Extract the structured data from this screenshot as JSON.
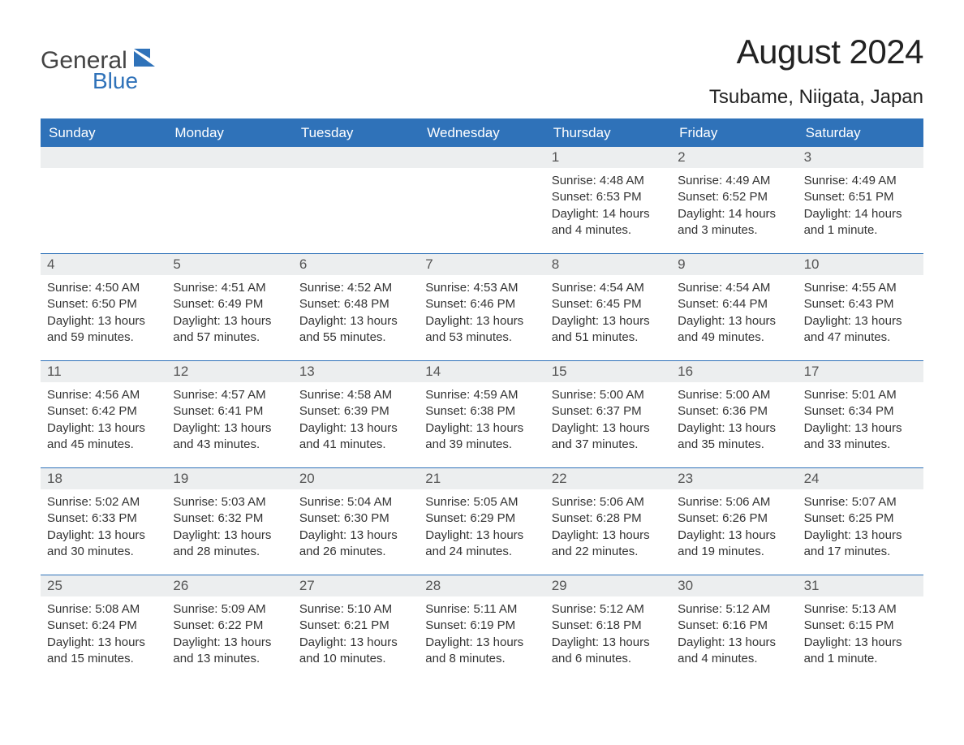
{
  "brand": {
    "text1": "General",
    "text2": "Blue",
    "accent_color": "#2f72b9",
    "text1_color": "#444444"
  },
  "header": {
    "title": "August 2024",
    "location": "Tsubame, Niigata, Japan",
    "title_fontsize": 42,
    "location_fontsize": 24
  },
  "calendar": {
    "type": "table",
    "header_bg": "#2f72b9",
    "header_text_color": "#ffffff",
    "daynum_bg": "#eceeef",
    "row_border_color": "#2f72b9",
    "body_text_color": "#333333",
    "days_of_week": [
      "Sunday",
      "Monday",
      "Tuesday",
      "Wednesday",
      "Thursday",
      "Friday",
      "Saturday"
    ],
    "leading_blanks": 4,
    "days": [
      {
        "n": "1",
        "sunrise": "Sunrise: 4:48 AM",
        "sunset": "Sunset: 6:53 PM",
        "day1": "Daylight: 14 hours",
        "day2": "and 4 minutes."
      },
      {
        "n": "2",
        "sunrise": "Sunrise: 4:49 AM",
        "sunset": "Sunset: 6:52 PM",
        "day1": "Daylight: 14 hours",
        "day2": "and 3 minutes."
      },
      {
        "n": "3",
        "sunrise": "Sunrise: 4:49 AM",
        "sunset": "Sunset: 6:51 PM",
        "day1": "Daylight: 14 hours",
        "day2": "and 1 minute."
      },
      {
        "n": "4",
        "sunrise": "Sunrise: 4:50 AM",
        "sunset": "Sunset: 6:50 PM",
        "day1": "Daylight: 13 hours",
        "day2": "and 59 minutes."
      },
      {
        "n": "5",
        "sunrise": "Sunrise: 4:51 AM",
        "sunset": "Sunset: 6:49 PM",
        "day1": "Daylight: 13 hours",
        "day2": "and 57 minutes."
      },
      {
        "n": "6",
        "sunrise": "Sunrise: 4:52 AM",
        "sunset": "Sunset: 6:48 PM",
        "day1": "Daylight: 13 hours",
        "day2": "and 55 minutes."
      },
      {
        "n": "7",
        "sunrise": "Sunrise: 4:53 AM",
        "sunset": "Sunset: 6:46 PM",
        "day1": "Daylight: 13 hours",
        "day2": "and 53 minutes."
      },
      {
        "n": "8",
        "sunrise": "Sunrise: 4:54 AM",
        "sunset": "Sunset: 6:45 PM",
        "day1": "Daylight: 13 hours",
        "day2": "and 51 minutes."
      },
      {
        "n": "9",
        "sunrise": "Sunrise: 4:54 AM",
        "sunset": "Sunset: 6:44 PM",
        "day1": "Daylight: 13 hours",
        "day2": "and 49 minutes."
      },
      {
        "n": "10",
        "sunrise": "Sunrise: 4:55 AM",
        "sunset": "Sunset: 6:43 PM",
        "day1": "Daylight: 13 hours",
        "day2": "and 47 minutes."
      },
      {
        "n": "11",
        "sunrise": "Sunrise: 4:56 AM",
        "sunset": "Sunset: 6:42 PM",
        "day1": "Daylight: 13 hours",
        "day2": "and 45 minutes."
      },
      {
        "n": "12",
        "sunrise": "Sunrise: 4:57 AM",
        "sunset": "Sunset: 6:41 PM",
        "day1": "Daylight: 13 hours",
        "day2": "and 43 minutes."
      },
      {
        "n": "13",
        "sunrise": "Sunrise: 4:58 AM",
        "sunset": "Sunset: 6:39 PM",
        "day1": "Daylight: 13 hours",
        "day2": "and 41 minutes."
      },
      {
        "n": "14",
        "sunrise": "Sunrise: 4:59 AM",
        "sunset": "Sunset: 6:38 PM",
        "day1": "Daylight: 13 hours",
        "day2": "and 39 minutes."
      },
      {
        "n": "15",
        "sunrise": "Sunrise: 5:00 AM",
        "sunset": "Sunset: 6:37 PM",
        "day1": "Daylight: 13 hours",
        "day2": "and 37 minutes."
      },
      {
        "n": "16",
        "sunrise": "Sunrise: 5:00 AM",
        "sunset": "Sunset: 6:36 PM",
        "day1": "Daylight: 13 hours",
        "day2": "and 35 minutes."
      },
      {
        "n": "17",
        "sunrise": "Sunrise: 5:01 AM",
        "sunset": "Sunset: 6:34 PM",
        "day1": "Daylight: 13 hours",
        "day2": "and 33 minutes."
      },
      {
        "n": "18",
        "sunrise": "Sunrise: 5:02 AM",
        "sunset": "Sunset: 6:33 PM",
        "day1": "Daylight: 13 hours",
        "day2": "and 30 minutes."
      },
      {
        "n": "19",
        "sunrise": "Sunrise: 5:03 AM",
        "sunset": "Sunset: 6:32 PM",
        "day1": "Daylight: 13 hours",
        "day2": "and 28 minutes."
      },
      {
        "n": "20",
        "sunrise": "Sunrise: 5:04 AM",
        "sunset": "Sunset: 6:30 PM",
        "day1": "Daylight: 13 hours",
        "day2": "and 26 minutes."
      },
      {
        "n": "21",
        "sunrise": "Sunrise: 5:05 AM",
        "sunset": "Sunset: 6:29 PM",
        "day1": "Daylight: 13 hours",
        "day2": "and 24 minutes."
      },
      {
        "n": "22",
        "sunrise": "Sunrise: 5:06 AM",
        "sunset": "Sunset: 6:28 PM",
        "day1": "Daylight: 13 hours",
        "day2": "and 22 minutes."
      },
      {
        "n": "23",
        "sunrise": "Sunrise: 5:06 AM",
        "sunset": "Sunset: 6:26 PM",
        "day1": "Daylight: 13 hours",
        "day2": "and 19 minutes."
      },
      {
        "n": "24",
        "sunrise": "Sunrise: 5:07 AM",
        "sunset": "Sunset: 6:25 PM",
        "day1": "Daylight: 13 hours",
        "day2": "and 17 minutes."
      },
      {
        "n": "25",
        "sunrise": "Sunrise: 5:08 AM",
        "sunset": "Sunset: 6:24 PM",
        "day1": "Daylight: 13 hours",
        "day2": "and 15 minutes."
      },
      {
        "n": "26",
        "sunrise": "Sunrise: 5:09 AM",
        "sunset": "Sunset: 6:22 PM",
        "day1": "Daylight: 13 hours",
        "day2": "and 13 minutes."
      },
      {
        "n": "27",
        "sunrise": "Sunrise: 5:10 AM",
        "sunset": "Sunset: 6:21 PM",
        "day1": "Daylight: 13 hours",
        "day2": "and 10 minutes."
      },
      {
        "n": "28",
        "sunrise": "Sunrise: 5:11 AM",
        "sunset": "Sunset: 6:19 PM",
        "day1": "Daylight: 13 hours",
        "day2": "and 8 minutes."
      },
      {
        "n": "29",
        "sunrise": "Sunrise: 5:12 AM",
        "sunset": "Sunset: 6:18 PM",
        "day1": "Daylight: 13 hours",
        "day2": "and 6 minutes."
      },
      {
        "n": "30",
        "sunrise": "Sunrise: 5:12 AM",
        "sunset": "Sunset: 6:16 PM",
        "day1": "Daylight: 13 hours",
        "day2": "and 4 minutes."
      },
      {
        "n": "31",
        "sunrise": "Sunrise: 5:13 AM",
        "sunset": "Sunset: 6:15 PM",
        "day1": "Daylight: 13 hours",
        "day2": "and 1 minute."
      }
    ]
  }
}
